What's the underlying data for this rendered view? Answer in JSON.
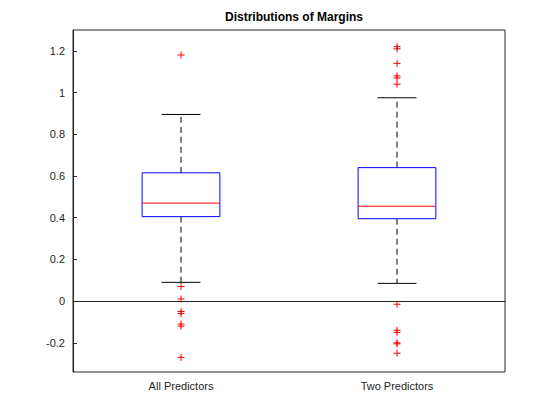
{
  "chart_data": {
    "type": "boxplot",
    "title": "Distributions of Margins",
    "categories": [
      "All Predictors",
      "Two Predictors"
    ],
    "boxes": [
      {
        "min": 0.09,
        "q1": 0.405,
        "median": 0.47,
        "q3": 0.615,
        "max": 0.895,
        "outliers": [
          1.18,
          0.07,
          0.01,
          -0.05,
          -0.06,
          -0.11,
          -0.12,
          -0.27
        ]
      },
      {
        "min": 0.085,
        "q1": 0.395,
        "median": 0.455,
        "q3": 0.64,
        "max": 0.975,
        "outliers": [
          1.22,
          1.21,
          1.14,
          1.08,
          1.07,
          1.04,
          -0.015,
          -0.14,
          -0.15,
          -0.2,
          -0.205,
          -0.25
        ]
      }
    ],
    "color": "#0000ff",
    "marker": "+",
    "ylim": [
      -0.34,
      1.3
    ],
    "yticks": [
      -0.2,
      0,
      0.2,
      0.4,
      0.6,
      0.8,
      1,
      1.2
    ],
    "grid": false
  }
}
